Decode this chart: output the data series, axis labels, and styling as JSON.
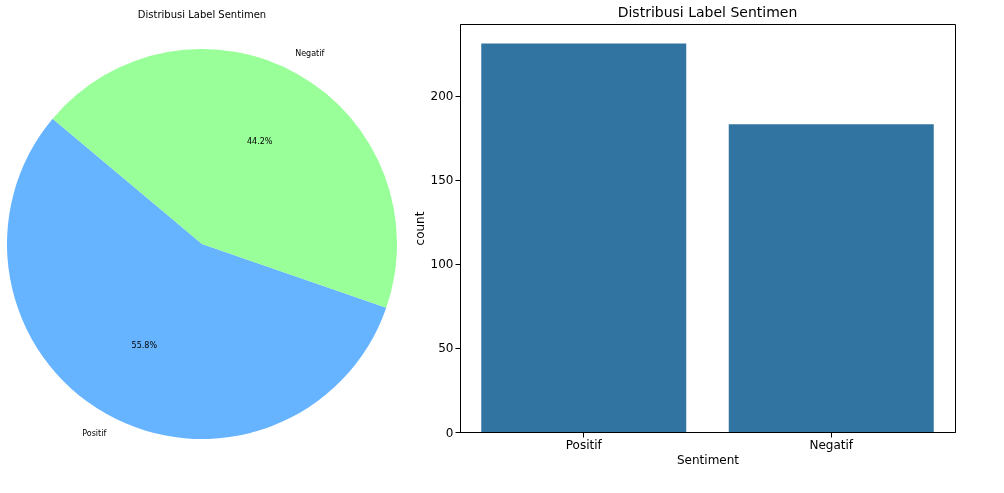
{
  "chart_data": [
    {
      "type": "pie",
      "title": "Distribusi Label Sentimen",
      "categories": [
        "Positif",
        "Negatif"
      ],
      "values": [
        55.8,
        44.2
      ],
      "colors": [
        "#66b3ff",
        "#99ff99"
      ],
      "value_labels": [
        "55.8%",
        "44.2%"
      ]
    },
    {
      "type": "bar",
      "title": "Distribusi Label Sentimen",
      "categories": [
        "Positif",
        "Negatif"
      ],
      "values": [
        231,
        183
      ],
      "color": "#3274a1",
      "xlabel": "Sentiment",
      "ylabel": "count",
      "ylim": [
        0,
        242.6
      ],
      "yticks": [
        0,
        50,
        100,
        150,
        200
      ]
    }
  ]
}
